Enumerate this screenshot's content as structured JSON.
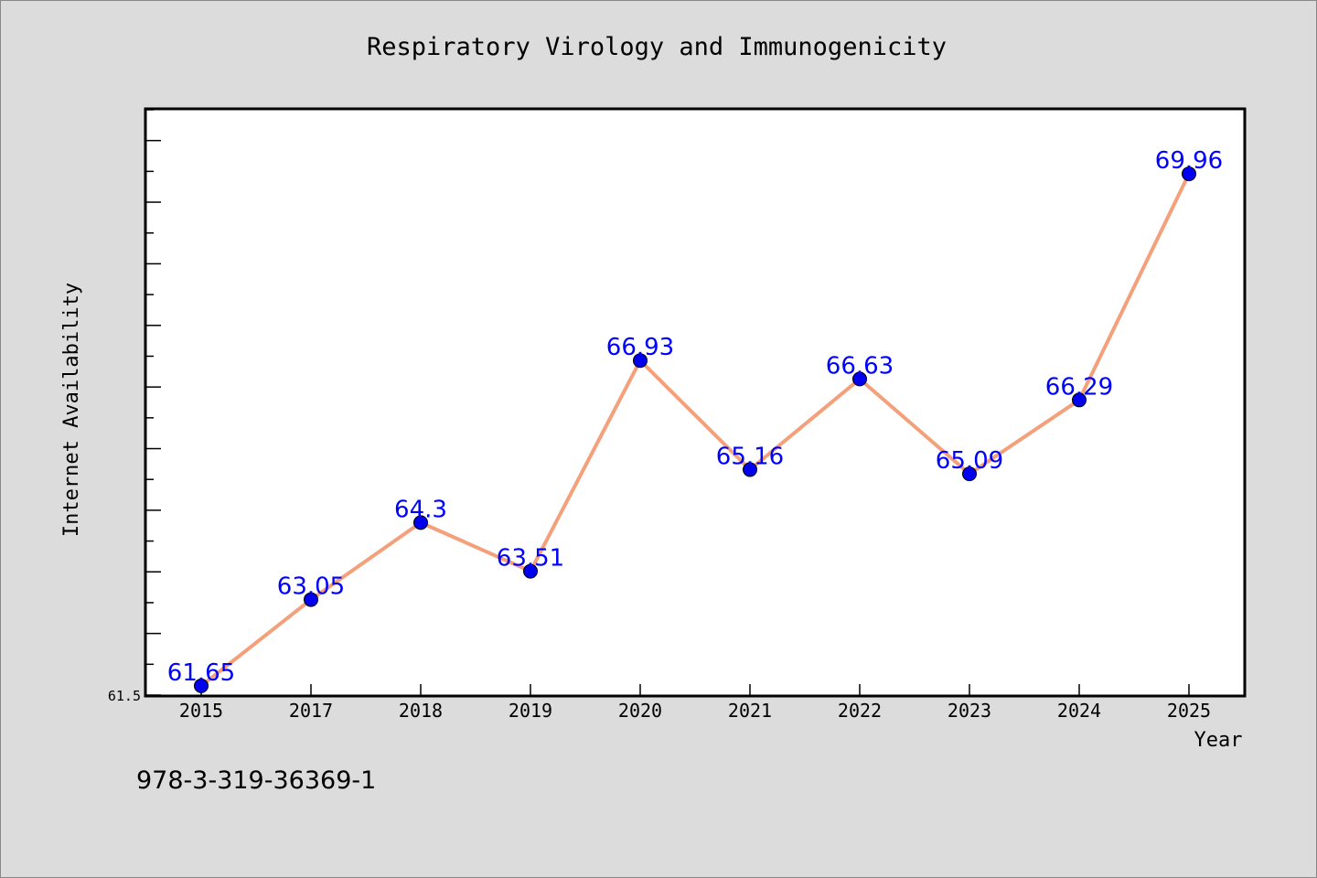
{
  "chart_data": {
    "type": "line",
    "title": "Respiratory Virology and Immunogenicity",
    "xlabel": "Year",
    "ylabel": "Internet Availability",
    "categories": [
      "2015",
      "2017",
      "2018",
      "2019",
      "2020",
      "2021",
      "2022",
      "2023",
      "2024",
      "2025"
    ],
    "series": [
      {
        "values": [
          61.65,
          63.05,
          64.3,
          63.51,
          66.93,
          65.16,
          66.63,
          65.09,
          66.29,
          69.96
        ],
        "labels": [
          "61.65",
          "63.05",
          "64.3",
          "63.51",
          "66.93",
          "65.16",
          "66.63",
          "65.09",
          "66.29",
          "69.96"
        ],
        "line_color": "#f4a07a",
        "marker_color": "#0000ee"
      }
    ],
    "ylim": [
      61.5,
      71.0
    ],
    "yticklabels": [
      "61.5"
    ],
    "grid": false,
    "legend": false
  },
  "footer": {
    "isbn": "978-3-319-36369-1"
  }
}
